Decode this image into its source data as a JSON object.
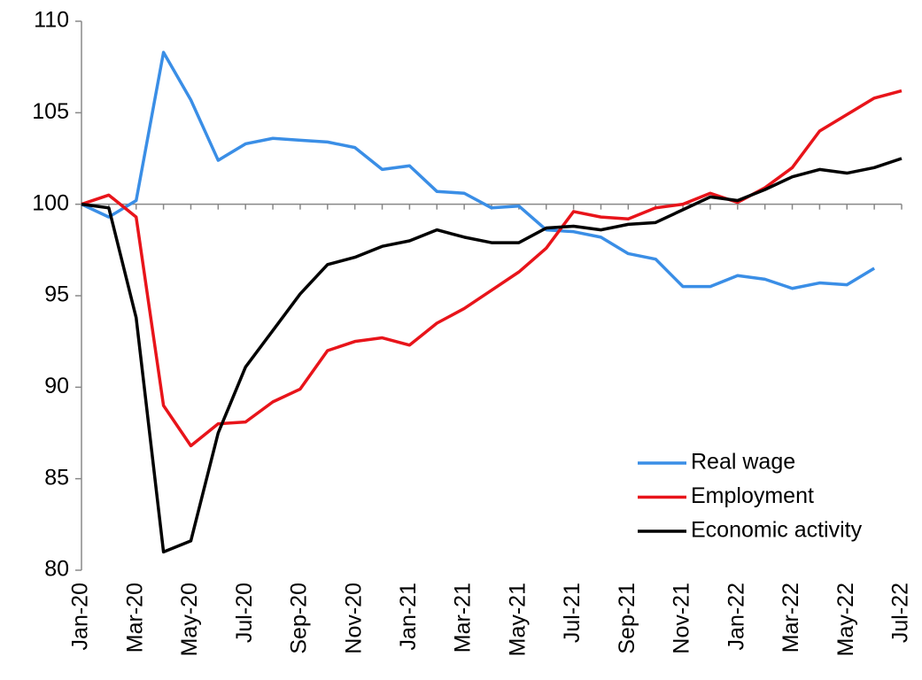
{
  "chart_data": {
    "type": "line",
    "categories": [
      "Jan-20",
      null,
      "Mar-20",
      null,
      "May-20",
      null,
      "Jul-20",
      null,
      "Sep-20",
      null,
      "Nov-20",
      null,
      "Jan-21",
      null,
      "Mar-21",
      null,
      "May-21",
      null,
      "Jul-21",
      null,
      "Sep-21",
      null,
      "Nov-21",
      null,
      "Jan-22",
      null,
      "Mar-22",
      null,
      "May-22",
      null,
      "Jul-22"
    ],
    "series": [
      {
        "name": "Real wage",
        "color": "#3a8ee6",
        "values": [
          100,
          99.3,
          100.2,
          108.3,
          105.7,
          102.4,
          103.3,
          103.6,
          103.5,
          103.4,
          103.1,
          101.9,
          102.1,
          100.7,
          100.6,
          99.8,
          99.9,
          98.6,
          98.5,
          98.2,
          97.3,
          97.0,
          95.5,
          95.5,
          96.1,
          95.9,
          95.4,
          95.7,
          95.6,
          96.5,
          null
        ]
      },
      {
        "name": "Employment",
        "color": "#e8141a",
        "values": [
          100,
          100.5,
          99.3,
          89.0,
          86.8,
          88.0,
          88.1,
          89.2,
          89.9,
          92.0,
          92.5,
          92.7,
          92.3,
          93.5,
          94.3,
          95.3,
          96.3,
          97.6,
          99.6,
          99.3,
          99.2,
          99.8,
          100.0,
          100.6,
          100.1,
          100.9,
          102.0,
          104.0,
          104.9,
          105.8,
          106.2
        ]
      },
      {
        "name": "Economic activity",
        "color": "#000000",
        "values": [
          100,
          99.8,
          93.8,
          81.0,
          81.6,
          87.5,
          91.1,
          93.1,
          95.1,
          96.7,
          97.1,
          97.7,
          98.0,
          98.6,
          98.2,
          97.9,
          97.9,
          98.7,
          98.8,
          98.6,
          98.9,
          99.0,
          99.7,
          100.4,
          100.2,
          100.8,
          101.5,
          101.9,
          101.7,
          102.0,
          102.5
        ]
      }
    ],
    "ylim": [
      80,
      110
    ],
    "yticks": [
      80,
      85,
      90,
      95,
      100,
      105,
      110
    ],
    "x_axis_at": 100,
    "grid": false,
    "legend": "lower right"
  }
}
